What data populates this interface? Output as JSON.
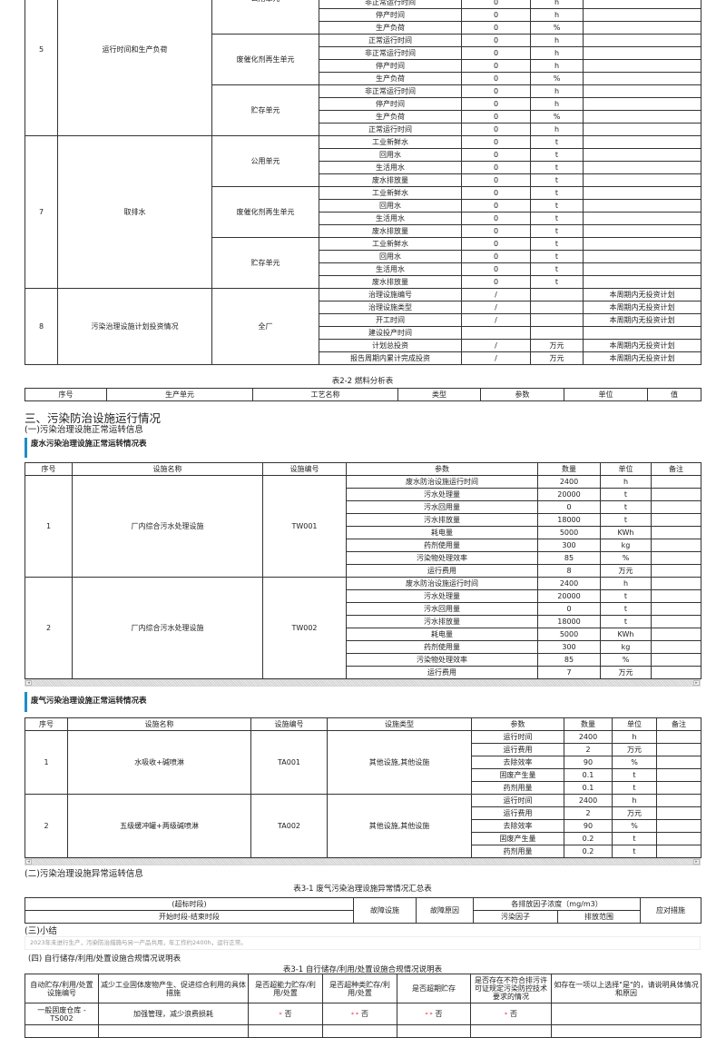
{
  "table_top": {
    "sections": [
      {
        "no": "5",
        "label": "运行时间和生产负荷",
        "units": [
          {
            "name": "公用单元",
            "params": [
              [
                "非正常运行时间",
                "0",
                "h",
                ""
              ],
              [
                "停产时间",
                "0",
                "h",
                ""
              ],
              [
                "生产负荷",
                "0",
                "%",
                ""
              ]
            ]
          },
          {
            "name": "废催化剂再生单元",
            "params": [
              [
                "正常运行时间",
                "0",
                "h",
                ""
              ],
              [
                "非正常运行时间",
                "0",
                "h",
                ""
              ],
              [
                "停产时间",
                "0",
                "h",
                ""
              ],
              [
                "生产负荷",
                "0",
                "%",
                ""
              ]
            ]
          },
          {
            "name": "贮存单元",
            "params": [
              [
                "非正常运行时间",
                "0",
                "h",
                ""
              ],
              [
                "停产时间",
                "0",
                "h",
                ""
              ],
              [
                "生产负荷",
                "0",
                "%",
                ""
              ],
              [
                "正常运行时间",
                "0",
                "h",
                ""
              ]
            ]
          }
        ]
      },
      {
        "no": "7",
        "label": "取排水",
        "units": [
          {
            "name": "公用单元",
            "params": [
              [
                "工业新鲜水",
                "0",
                "t",
                ""
              ],
              [
                "回用水",
                "0",
                "t",
                ""
              ],
              [
                "生活用水",
                "0",
                "t",
                ""
              ],
              [
                "废水排放量",
                "0",
                "t",
                ""
              ]
            ]
          },
          {
            "name": "废催化剂再生单元",
            "params": [
              [
                "工业新鲜水",
                "0",
                "t",
                ""
              ],
              [
                "回用水",
                "0",
                "t",
                ""
              ],
              [
                "生活用水",
                "0",
                "t",
                ""
              ],
              [
                "废水排放量",
                "0",
                "t",
                ""
              ]
            ]
          },
          {
            "name": "贮存单元",
            "params": [
              [
                "工业新鲜水",
                "0",
                "t",
                ""
              ],
              [
                "回用水",
                "0",
                "t",
                ""
              ],
              [
                "生活用水",
                "0",
                "t",
                ""
              ],
              [
                "废水排放量",
                "0",
                "t",
                ""
              ]
            ]
          }
        ]
      },
      {
        "no": "8",
        "label": "污染治理设施计划投资情况",
        "units": [
          {
            "name": "全厂",
            "params": [
              [
                "治理设施编号",
                "/",
                "",
                "本周期内无投资计划"
              ],
              [
                "治理设施类型",
                "/",
                "",
                "本周期内无投资计划"
              ],
              [
                "开工时间",
                "/",
                "",
                "本周期内无投资计划"
              ],
              [
                "建设投产时间",
                "",
                "",
                ""
              ],
              [
                "计划总投资",
                "/",
                "万元",
                "本周期内无投资计划"
              ],
              [
                "报告周期内累计完成投资",
                "/",
                "万元",
                "本周期内无投资计划"
              ]
            ]
          }
        ]
      }
    ]
  },
  "fuel_table": {
    "caption": "表2-2 燃料分析表",
    "headers": [
      "序号",
      "生产单元",
      "工艺名称",
      "类型",
      "参数",
      "单位",
      "值"
    ]
  },
  "section3": {
    "title": "三、污染防治设施运行情况",
    "sub1": "(一)污染治理设施正常运转信息"
  },
  "wastewater": {
    "title": "废水污染治理设施正常运转情况表",
    "headers": [
      "序号",
      "设施名称",
      "设施编号",
      "参数",
      "数量",
      "单位",
      "备注"
    ],
    "facilities": [
      {
        "no": "1",
        "name": "厂内综合污水处理设施",
        "code": "TW001",
        "params": [
          [
            "废水防治设施运行时间",
            "2400",
            "h",
            ""
          ],
          [
            "污水处理量",
            "20000",
            "t",
            ""
          ],
          [
            "污水回用量",
            "0",
            "t",
            ""
          ],
          [
            "污水排放量",
            "18000",
            "t",
            ""
          ],
          [
            "耗电量",
            "5000",
            "KWh",
            ""
          ],
          [
            "药剂使用量",
            "300",
            "kg",
            ""
          ],
          [
            "污染物处理效率",
            "85",
            "%",
            ""
          ],
          [
            "运行费用",
            "8",
            "万元",
            ""
          ]
        ]
      },
      {
        "no": "2",
        "name": "厂内综合污水处理设施",
        "code": "TW002",
        "params": [
          [
            "废水防治设施运行时间",
            "2400",
            "h",
            ""
          ],
          [
            "污水处理量",
            "20000",
            "t",
            ""
          ],
          [
            "污水回用量",
            "0",
            "t",
            ""
          ],
          [
            "污水排放量",
            "18000",
            "t",
            ""
          ],
          [
            "耗电量",
            "5000",
            "KWh",
            ""
          ],
          [
            "药剂使用量",
            "300",
            "kg",
            ""
          ],
          [
            "污染物处理效率",
            "85",
            "%",
            ""
          ],
          [
            "运行费用",
            "7",
            "万元",
            ""
          ]
        ]
      }
    ]
  },
  "gas": {
    "title": "废气污染治理设施正常运转情况表",
    "headers": [
      "序号",
      "设施名称",
      "设施编号",
      "设施类型",
      "参数",
      "数量",
      "单位",
      "备注"
    ],
    "facilities": [
      {
        "no": "1",
        "name": "水吸收+碱喷淋",
        "code": "TA001",
        "type": "其他设施,其他设施",
        "params": [
          [
            "运行时间",
            "2400",
            "h",
            ""
          ],
          [
            "运行费用",
            "2",
            "万元",
            ""
          ],
          [
            "去除效率",
            "90",
            "%",
            ""
          ],
          [
            "固废产生量",
            "0.1",
            "t",
            ""
          ],
          [
            "药剂用量",
            "0.1",
            "t",
            ""
          ]
        ]
      },
      {
        "no": "2",
        "name": "五级缓冲罐+两级碱喷淋",
        "code": "TA002",
        "type": "其他设施,其他设施",
        "params": [
          [
            "运行时间",
            "2400",
            "h",
            ""
          ],
          [
            "运行费用",
            "2",
            "万元",
            ""
          ],
          [
            "去除效率",
            "90",
            "%",
            ""
          ],
          [
            "固废产生量",
            "0.2",
            "t",
            ""
          ],
          [
            "药剂用量",
            "0.2",
            "t",
            ""
          ]
        ]
      }
    ]
  },
  "abnormal": {
    "sub2": "(二)污染治理设施异常运转信息",
    "caption": "表3-1 废气污染治理设施异常情况汇总表",
    "period": "(超标时段)",
    "period_sub": "开始时段-结束时段",
    "fault_facility": "故障设施",
    "fault_reason": "故障原因",
    "concentration": "各排放因子浓度（mg/m3）",
    "pollutant": "污染因子",
    "range": "排放范围",
    "measures": "应对措施"
  },
  "summary": {
    "title": "(三)小结",
    "text": "2023年未进行生产，污染防治措施与另一产品共用，年工作约2400h，运行正常。"
  },
  "storage": {
    "title": "(四) 自行储存/利用/处置设施合规情况说明表",
    "caption": "表3-1 自行储存/利用/处置设施合规情况说明表",
    "headers": [
      "自动贮存/利用/处置设施编号",
      "减少工业固体废物产生、促进综合利用的具体措施",
      "是否超能力贮存/利用/处置",
      "是否超种类贮存/利用/处置",
      "是否超期贮存",
      "是否存在不符合排污许可证规定污染防控技术要求的情况",
      "如存在一项以上选择\"是\"的，请说明具体情况和原因"
    ],
    "rows": [
      {
        "code": "一般固废仓库 - TS002",
        "measure": "加强管理，减少浪费损耗",
        "c1_mark": "*",
        "c1": "否",
        "c2_mark": "* *",
        "c2": "否",
        "c3_mark": "* *",
        "c3": "否",
        "c4_mark": "*",
        "c4": "否",
        "reason": ""
      }
    ]
  },
  "colors": {
    "accent_bar": "#1a8fc9",
    "border": "#333333",
    "required_mark": "#e22233"
  }
}
